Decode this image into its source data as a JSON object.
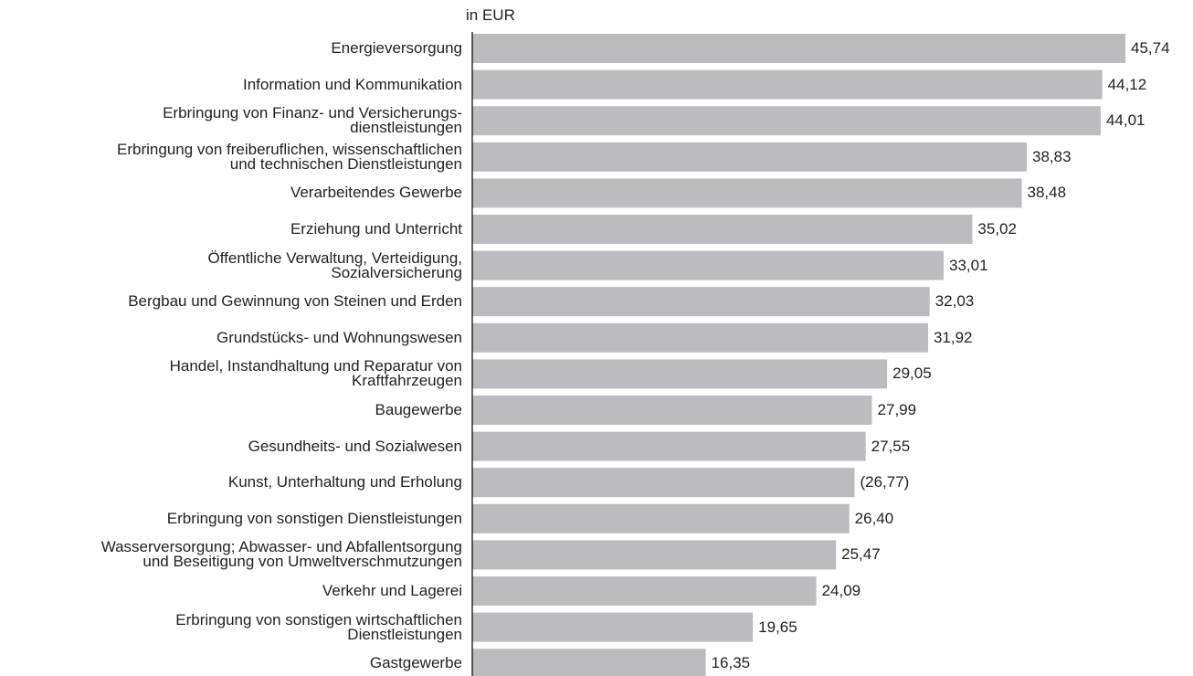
{
  "chart_data": {
    "type": "bar",
    "orientation": "horizontal",
    "subtitle": "in EUR",
    "categories": [
      "Energieversorgung",
      "Information und Kommunikation",
      "Erbringung von Finanz- und Versicherungs-\ndienstleistungen",
      "Erbringung von freiberuflichen, wissenschaftlichen\nund technischen Dienstleistungen",
      "Verarbeitendes Gewerbe",
      "Erziehung und Unterricht",
      "Öffentliche Verwaltung, Verteidigung,\nSozialversicherung",
      "Bergbau und Gewinnung von Steinen und Erden",
      "Grundstücks- und Wohnungswesen",
      "Handel, Instandhaltung und Reparatur von\nKraftfahrzeugen",
      "Baugewerbe",
      "Gesundheits- und Sozialwesen",
      "Kunst, Unterhaltung und Erholung",
      "Erbringung von sonstigen Dienstleistungen",
      "Wasserversorgung; Abwasser- und Abfallentsorgung\nund Beseitigung von Umweltverschmutzungen",
      "Verkehr und Lagerei",
      "Erbringung von sonstigen wirtschaftlichen\nDienstleistungen",
      "Gastgewerbe"
    ],
    "values": [
      45.74,
      44.12,
      44.01,
      38.83,
      38.48,
      35.02,
      33.01,
      32.03,
      31.92,
      29.05,
      27.99,
      27.55,
      26.77,
      26.4,
      25.47,
      24.09,
      19.65,
      16.35
    ],
    "value_labels": [
      "45,74",
      "44,12",
      "44,01",
      "38,83",
      "38,48",
      "35,02",
      "33,01",
      "32,03",
      "31,92",
      "29,05",
      "27,99",
      "27,55",
      "(26,77)",
      "26,40",
      "25,47",
      "24,09",
      "19,65",
      "16,35"
    ],
    "color": "#bcbcc0",
    "xlim": [
      0,
      50
    ]
  }
}
